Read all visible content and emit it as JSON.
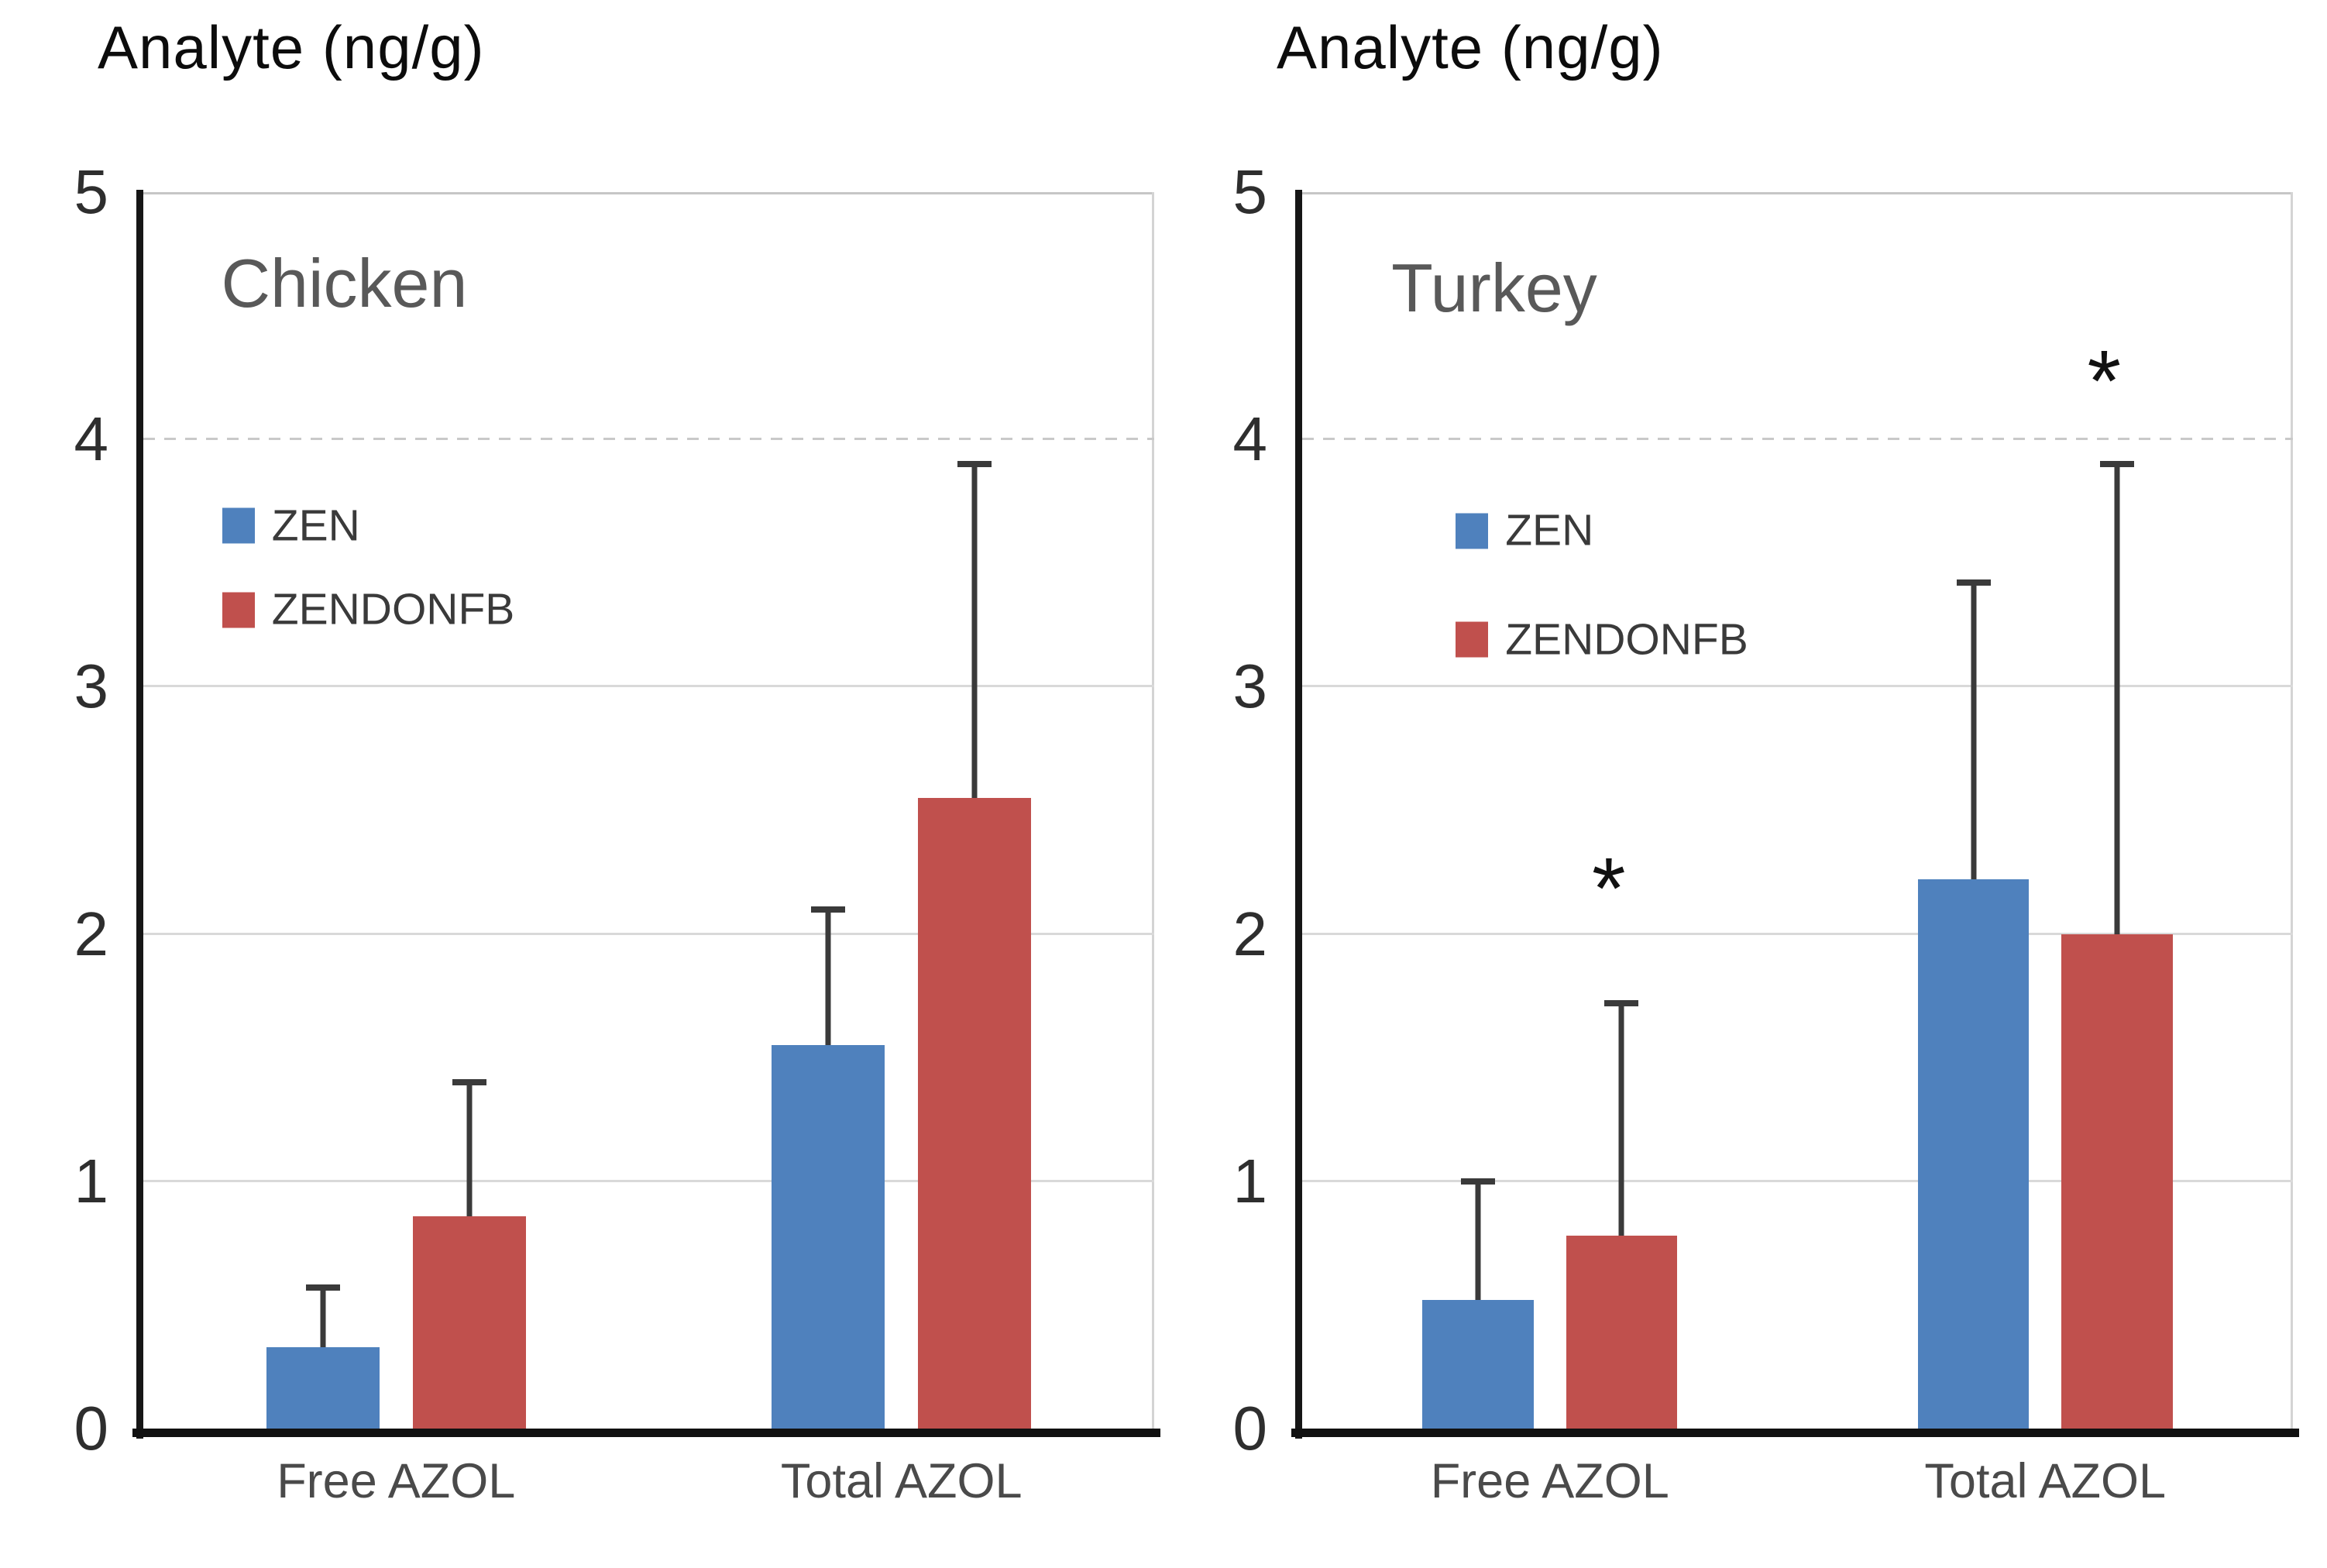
{
  "chart_data": [
    {
      "type": "bar",
      "panel": "Chicken",
      "title": "Analyte (ng/g)",
      "ylabel": "Analyte (ng/g)",
      "categories": [
        "Free AZOL",
        "Total AZOL"
      ],
      "series": [
        {
          "name": "ZEN",
          "color": "#4F81BD",
          "values": [
            0.33,
            1.55
          ],
          "error_up": [
            0.24,
            0.55
          ]
        },
        {
          "name": "ZENDONFB",
          "color": "#C0504D",
          "values": [
            0.86,
            2.55
          ],
          "error_up": [
            0.54,
            1.35
          ]
        }
      ],
      "ylim": [
        0,
        5
      ],
      "yticks": [
        0,
        1,
        2,
        3,
        4,
        5
      ],
      "grid": true,
      "legend_position": "upper-left-inside",
      "annotations": []
    },
    {
      "type": "bar",
      "panel": "Turkey",
      "title": "Analyte (ng/g)",
      "ylabel": "Analyte (ng/g)",
      "categories": [
        "Free AZOL",
        "Total AZOL"
      ],
      "series": [
        {
          "name": "ZEN",
          "color": "#4F81BD",
          "values": [
            0.52,
            2.22
          ],
          "error_up": [
            0.48,
            1.2
          ]
        },
        {
          "name": "ZENDONFB",
          "color": "#C0504D",
          "values": [
            0.78,
            2.0
          ],
          "error_up": [
            0.94,
            1.9
          ]
        }
      ],
      "ylim": [
        0,
        5
      ],
      "yticks": [
        0,
        1,
        2,
        3,
        4,
        5
      ],
      "grid": true,
      "legend_position": "upper-left-inside",
      "annotations": [
        {
          "text": "*",
          "category_index": 0,
          "series_index": 1,
          "y": 2.2
        },
        {
          "text": "*",
          "category_index": 1,
          "series_index": 1,
          "y": 4.25
        }
      ]
    }
  ]
}
